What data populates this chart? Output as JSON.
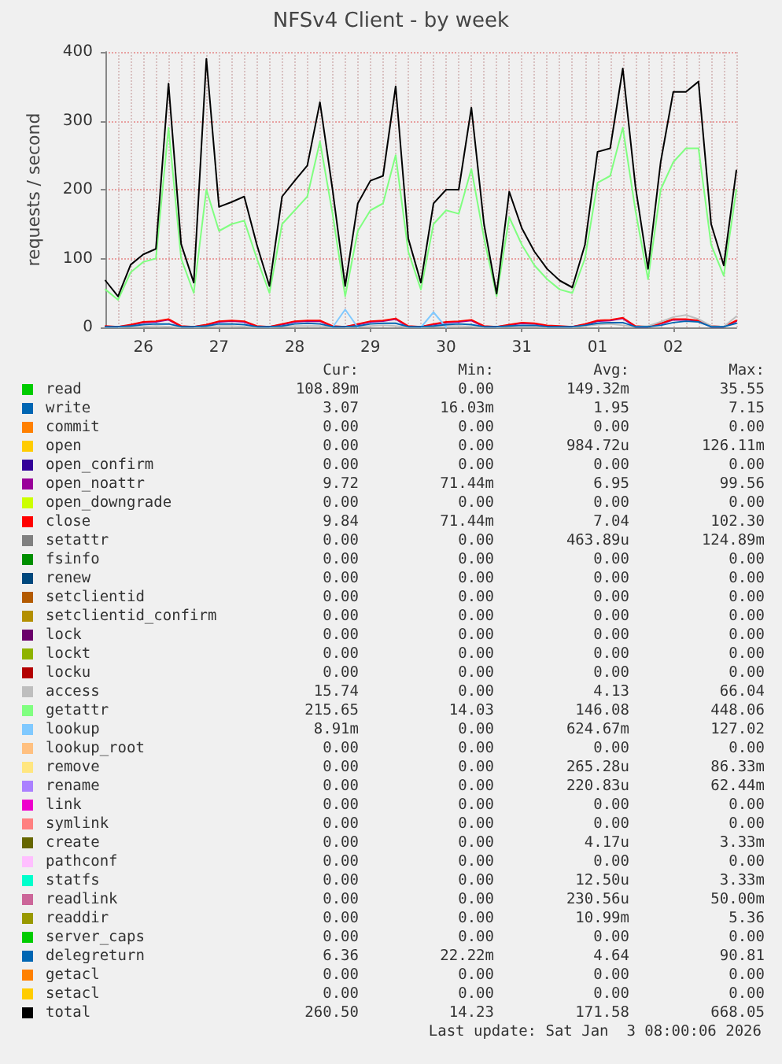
{
  "chart_data": {
    "type": "line",
    "title": "NFSv4 Client - by week",
    "ylabel": "requests / second",
    "categories": [
      null,
      null,
      null,
      "26",
      null,
      null,
      null,
      null,
      null,
      "27",
      null,
      null,
      null,
      null,
      null,
      "28",
      null,
      null,
      null,
      null,
      null,
      "29",
      null,
      null,
      null,
      null,
      null,
      "30",
      null,
      null,
      null,
      null,
      null,
      "31",
      null,
      null,
      null,
      null,
      null,
      "01",
      null,
      null,
      null,
      null,
      null,
      "02",
      null,
      null,
      null,
      null,
      null
    ],
    "ylim": [
      0,
      400
    ],
    "yticks": [
      0,
      100,
      200,
      300,
      400
    ],
    "grid": true,
    "legend": "bottom",
    "marker": "none",
    "line_style": "solid",
    "series": [
      {
        "name": "read",
        "color": "#00cc00",
        "values": [
          null,
          null,
          null,
          null,
          null,
          null,
          null,
          null,
          null,
          null,
          null,
          null,
          null,
          null,
          null,
          null,
          null,
          null,
          null,
          null,
          null,
          null,
          null,
          null,
          null,
          null,
          null,
          null,
          null,
          null,
          null,
          null,
          null,
          null,
          null,
          null,
          null,
          null,
          null,
          null,
          null,
          null,
          null,
          null,
          null,
          null,
          null,
          null,
          null,
          null,
          null
        ]
      },
      {
        "name": "write",
        "color": "#0066b3",
        "values": [
          null,
          null,
          null,
          null,
          null,
          null,
          null,
          null,
          null,
          null,
          null,
          null,
          null,
          null,
          null,
          null,
          null,
          null,
          null,
          null,
          null,
          null,
          null,
          null,
          null,
          null,
          null,
          null,
          null,
          null,
          null,
          null,
          null,
          null,
          null,
          null,
          null,
          null,
          null,
          null,
          null,
          null,
          null,
          null,
          null,
          null,
          null,
          null,
          null,
          null,
          null
        ]
      },
      {
        "name": "commit",
        "color": "#ff8000",
        "values": [
          null,
          null,
          null,
          null,
          null,
          null,
          null,
          null,
          null,
          null,
          null,
          null,
          null,
          null,
          null,
          null,
          null,
          null,
          null,
          null,
          null,
          null,
          null,
          null,
          null,
          null,
          null,
          null,
          null,
          null,
          null,
          null,
          null,
          null,
          null,
          null,
          null,
          null,
          null,
          null,
          null,
          null,
          null,
          null,
          null,
          null,
          null,
          null,
          null,
          null,
          null
        ]
      },
      {
        "name": "open",
        "color": "#ffcc00",
        "values": [
          null,
          null,
          null,
          null,
          null,
          null,
          null,
          null,
          null,
          null,
          null,
          null,
          null,
          null,
          null,
          null,
          null,
          null,
          null,
          null,
          null,
          null,
          null,
          null,
          null,
          null,
          null,
          null,
          null,
          null,
          null,
          null,
          null,
          null,
          null,
          null,
          null,
          null,
          null,
          null,
          null,
          null,
          null,
          null,
          null,
          null,
          null,
          null,
          null,
          null,
          null
        ]
      },
      {
        "name": "open_confirm",
        "color": "#330099",
        "values": [
          null,
          null,
          null,
          null,
          null,
          null,
          null,
          null,
          null,
          null,
          null,
          null,
          null,
          null,
          null,
          null,
          null,
          null,
          null,
          null,
          null,
          null,
          null,
          null,
          null,
          null,
          null,
          null,
          null,
          null,
          null,
          null,
          null,
          null,
          null,
          null,
          null,
          null,
          null,
          null,
          null,
          null,
          null,
          null,
          null,
          null,
          null,
          null,
          null,
          null,
          null
        ]
      },
      {
        "name": "open_noattr",
        "color": "#990099",
        "values": [
          1,
          1,
          3,
          7,
          8,
          11,
          1,
          1,
          3,
          8,
          9,
          8,
          1,
          1,
          4,
          8,
          9,
          9,
          1,
          1,
          4,
          8,
          9,
          12,
          1,
          1,
          4,
          7,
          8,
          10,
          1,
          1,
          3,
          6,
          5,
          2,
          1,
          1,
          4,
          9,
          10,
          13,
          1,
          1,
          5,
          11,
          11,
          9,
          1,
          1,
          9
        ]
      },
      {
        "name": "open_downgrade",
        "color": "#ccff00",
        "values": [
          null,
          null,
          null,
          null,
          null,
          null,
          null,
          null,
          null,
          null,
          null,
          null,
          null,
          null,
          null,
          null,
          null,
          null,
          null,
          null,
          null,
          null,
          null,
          null,
          null,
          null,
          null,
          null,
          null,
          null,
          null,
          null,
          null,
          null,
          null,
          null,
          null,
          null,
          null,
          null,
          null,
          null,
          null,
          null,
          null,
          null,
          null,
          null,
          null,
          null,
          null
        ]
      },
      {
        "name": "close",
        "color": "#ff0000",
        "values": [
          2,
          1,
          4,
          8,
          9,
          12,
          2,
          1,
          4,
          9,
          10,
          9,
          2,
          1,
          5,
          9,
          10,
          10,
          2,
          1,
          5,
          9,
          10,
          13,
          2,
          1,
          5,
          8,
          9,
          11,
          2,
          1,
          4,
          7,
          6,
          3,
          2,
          1,
          5,
          10,
          11,
          14,
          2,
          1,
          6,
          12,
          12,
          10,
          2,
          1,
          10
        ]
      },
      {
        "name": "setattr",
        "color": "#808080",
        "values": [
          null,
          null,
          null,
          null,
          null,
          null,
          null,
          null,
          null,
          null,
          null,
          null,
          null,
          null,
          null,
          null,
          null,
          null,
          null,
          null,
          null,
          null,
          null,
          null,
          null,
          null,
          null,
          null,
          null,
          null,
          null,
          null,
          null,
          null,
          null,
          null,
          null,
          null,
          null,
          null,
          null,
          null,
          null,
          null,
          null,
          null,
          null,
          null,
          null,
          null,
          null
        ]
      },
      {
        "name": "fsinfo",
        "color": "#008f00",
        "values": [
          null,
          null,
          null,
          null,
          null,
          null,
          null,
          null,
          null,
          null,
          null,
          null,
          null,
          null,
          null,
          null,
          null,
          null,
          null,
          null,
          null,
          null,
          null,
          null,
          null,
          null,
          null,
          null,
          null,
          null,
          null,
          null,
          null,
          null,
          null,
          null,
          null,
          null,
          null,
          null,
          null,
          null,
          null,
          null,
          null,
          null,
          null,
          null,
          null,
          null,
          null
        ]
      },
      {
        "name": "renew",
        "color": "#00487d",
        "values": [
          null,
          null,
          null,
          null,
          null,
          null,
          null,
          null,
          null,
          null,
          null,
          null,
          null,
          null,
          null,
          null,
          null,
          null,
          null,
          null,
          null,
          null,
          null,
          null,
          null,
          null,
          null,
          null,
          null,
          null,
          null,
          null,
          null,
          null,
          null,
          null,
          null,
          null,
          null,
          null,
          null,
          null,
          null,
          null,
          null,
          null,
          null,
          null,
          null,
          null,
          null
        ]
      },
      {
        "name": "setclientid",
        "color": "#b35a00",
        "values": [
          null,
          null,
          null,
          null,
          null,
          null,
          null,
          null,
          null,
          null,
          null,
          null,
          null,
          null,
          null,
          null,
          null,
          null,
          null,
          null,
          null,
          null,
          null,
          null,
          null,
          null,
          null,
          null,
          null,
          null,
          null,
          null,
          null,
          null,
          null,
          null,
          null,
          null,
          null,
          null,
          null,
          null,
          null,
          null,
          null,
          null,
          null,
          null,
          null,
          null,
          null
        ]
      },
      {
        "name": "setclientid_confirm",
        "color": "#b38f00",
        "values": [
          null,
          null,
          null,
          null,
          null,
          null,
          null,
          null,
          null,
          null,
          null,
          null,
          null,
          null,
          null,
          null,
          null,
          null,
          null,
          null,
          null,
          null,
          null,
          null,
          null,
          null,
          null,
          null,
          null,
          null,
          null,
          null,
          null,
          null,
          null,
          null,
          null,
          null,
          null,
          null,
          null,
          null,
          null,
          null,
          null,
          null,
          null,
          null,
          null,
          null,
          null
        ]
      },
      {
        "name": "lock",
        "color": "#6b006b",
        "values": [
          null,
          null,
          null,
          null,
          null,
          null,
          null,
          null,
          null,
          null,
          null,
          null,
          null,
          null,
          null,
          null,
          null,
          null,
          null,
          null,
          null,
          null,
          null,
          null,
          null,
          null,
          null,
          null,
          null,
          null,
          null,
          null,
          null,
          null,
          null,
          null,
          null,
          null,
          null,
          null,
          null,
          null,
          null,
          null,
          null,
          null,
          null,
          null,
          null,
          null,
          null
        ]
      },
      {
        "name": "lockt",
        "color": "#8fb300",
        "values": [
          null,
          null,
          null,
          null,
          null,
          null,
          null,
          null,
          null,
          null,
          null,
          null,
          null,
          null,
          null,
          null,
          null,
          null,
          null,
          null,
          null,
          null,
          null,
          null,
          null,
          null,
          null,
          null,
          null,
          null,
          null,
          null,
          null,
          null,
          null,
          null,
          null,
          null,
          null,
          null,
          null,
          null,
          null,
          null,
          null,
          null,
          null,
          null,
          null,
          null,
          null
        ]
      },
      {
        "name": "locku",
        "color": "#b30000",
        "values": [
          null,
          null,
          null,
          null,
          null,
          null,
          null,
          null,
          null,
          null,
          null,
          null,
          null,
          null,
          null,
          null,
          null,
          null,
          null,
          null,
          null,
          null,
          null,
          null,
          null,
          null,
          null,
          null,
          null,
          null,
          null,
          null,
          null,
          null,
          null,
          null,
          null,
          null,
          null,
          null,
          null,
          null,
          null,
          null,
          null,
          null,
          null,
          null,
          null,
          null,
          null
        ]
      },
      {
        "name": "access",
        "color": "#bebebe",
        "values": [
          0,
          0,
          1,
          1,
          2,
          1,
          0,
          0,
          1,
          2,
          2,
          1,
          0,
          0,
          1,
          2,
          2,
          2,
          0,
          0,
          1,
          2,
          3,
          2,
          0,
          0,
          1,
          2,
          2,
          1,
          0,
          0,
          1,
          1,
          1,
          0,
          0,
          0,
          2,
          4,
          5,
          3,
          1,
          2,
          8,
          15,
          18,
          12,
          2,
          1,
          16
        ]
      },
      {
        "name": "getattr",
        "color": "#80ff80",
        "values": [
          55,
          40,
          80,
          95,
          100,
          290,
          100,
          50,
          200,
          140,
          150,
          155,
          100,
          50,
          150,
          170,
          190,
          270,
          165,
          45,
          140,
          170,
          180,
          250,
          110,
          55,
          150,
          170,
          165,
          230,
          130,
          45,
          160,
          120,
          90,
          70,
          55,
          50,
          100,
          210,
          220,
          290,
          170,
          70,
          200,
          240,
          260,
          260,
          120,
          75,
          200
        ]
      },
      {
        "name": "lookup",
        "color": "#80c9ff",
        "values": [
          null,
          null,
          null,
          null,
          null,
          null,
          null,
          null,
          null,
          null,
          null,
          null,
          null,
          null,
          null,
          null,
          null,
          null,
          0,
          26,
          0,
          null,
          null,
          null,
          null,
          0,
          22,
          0,
          null,
          null,
          null,
          null,
          null,
          null,
          null,
          null,
          null,
          null,
          null,
          null,
          null,
          null,
          null,
          null,
          null,
          null,
          null,
          null,
          null,
          null,
          null
        ]
      },
      {
        "name": "lookup_root",
        "color": "#ffc080",
        "values": [
          null,
          null,
          null,
          null,
          null,
          null,
          null,
          null,
          null,
          null,
          null,
          null,
          null,
          null,
          null,
          null,
          null,
          null,
          null,
          null,
          null,
          null,
          null,
          null,
          null,
          null,
          null,
          null,
          null,
          null,
          null,
          null,
          null,
          null,
          null,
          null,
          null,
          null,
          null,
          null,
          null,
          null,
          null,
          null,
          null,
          null,
          null,
          null,
          null,
          null,
          null
        ]
      },
      {
        "name": "remove",
        "color": "#ffe680",
        "values": [
          null,
          null,
          null,
          null,
          null,
          null,
          null,
          null,
          null,
          null,
          null,
          null,
          null,
          null,
          null,
          null,
          null,
          null,
          null,
          null,
          null,
          null,
          null,
          null,
          null,
          null,
          null,
          null,
          null,
          null,
          null,
          null,
          null,
          null,
          null,
          null,
          null,
          null,
          null,
          null,
          null,
          null,
          null,
          null,
          null,
          null,
          null,
          null,
          null,
          null,
          null
        ]
      },
      {
        "name": "rename",
        "color": "#aa80ff",
        "values": [
          null,
          null,
          null,
          null,
          null,
          null,
          null,
          null,
          null,
          null,
          null,
          null,
          null,
          null,
          null,
          null,
          null,
          null,
          null,
          null,
          null,
          null,
          null,
          null,
          null,
          null,
          null,
          null,
          null,
          null,
          null,
          null,
          null,
          null,
          null,
          null,
          null,
          null,
          null,
          null,
          null,
          null,
          null,
          null,
          null,
          null,
          null,
          null,
          null,
          null,
          null
        ]
      },
      {
        "name": "link",
        "color": "#ee00cc",
        "values": [
          null,
          null,
          null,
          null,
          null,
          null,
          null,
          null,
          null,
          null,
          null,
          null,
          null,
          null,
          null,
          null,
          null,
          null,
          null,
          null,
          null,
          null,
          null,
          null,
          null,
          null,
          null,
          null,
          null,
          null,
          null,
          null,
          null,
          null,
          null,
          null,
          null,
          null,
          null,
          null,
          null,
          null,
          null,
          null,
          null,
          null,
          null,
          null,
          null,
          null,
          null
        ]
      },
      {
        "name": "symlink",
        "color": "#ff8080",
        "values": [
          null,
          null,
          null,
          null,
          null,
          null,
          null,
          null,
          null,
          null,
          null,
          null,
          null,
          null,
          null,
          null,
          null,
          null,
          null,
          null,
          null,
          null,
          null,
          null,
          null,
          null,
          null,
          null,
          null,
          null,
          null,
          null,
          null,
          null,
          null,
          null,
          null,
          null,
          null,
          null,
          null,
          null,
          null,
          null,
          null,
          null,
          null,
          null,
          null,
          null,
          null
        ]
      },
      {
        "name": "create",
        "color": "#666600",
        "values": [
          null,
          null,
          null,
          null,
          null,
          null,
          null,
          null,
          null,
          null,
          null,
          null,
          null,
          null,
          null,
          null,
          null,
          null,
          null,
          null,
          null,
          null,
          null,
          null,
          null,
          null,
          null,
          null,
          null,
          null,
          null,
          null,
          null,
          null,
          null,
          null,
          null,
          null,
          null,
          null,
          null,
          null,
          null,
          null,
          null,
          null,
          null,
          null,
          null,
          null,
          null
        ]
      },
      {
        "name": "pathconf",
        "color": "#ffbfff",
        "values": [
          null,
          null,
          null,
          null,
          null,
          null,
          null,
          null,
          null,
          null,
          null,
          null,
          null,
          null,
          null,
          null,
          null,
          null,
          null,
          null,
          null,
          null,
          null,
          null,
          null,
          null,
          null,
          null,
          null,
          null,
          null,
          null,
          null,
          null,
          null,
          null,
          null,
          null,
          null,
          null,
          null,
          null,
          null,
          null,
          null,
          null,
          null,
          null,
          null,
          null,
          null
        ]
      },
      {
        "name": "statfs",
        "color": "#00ffcc",
        "values": [
          null,
          null,
          null,
          null,
          null,
          null,
          null,
          null,
          null,
          null,
          null,
          null,
          null,
          null,
          null,
          null,
          null,
          null,
          null,
          null,
          null,
          null,
          null,
          null,
          null,
          null,
          null,
          null,
          null,
          null,
          null,
          null,
          null,
          null,
          null,
          null,
          null,
          null,
          null,
          null,
          null,
          null,
          null,
          null,
          null,
          null,
          null,
          null,
          null,
          null,
          null
        ]
      },
      {
        "name": "readlink",
        "color": "#cc6699",
        "values": [
          null,
          null,
          null,
          null,
          null,
          null,
          null,
          null,
          null,
          null,
          null,
          null,
          null,
          null,
          null,
          null,
          null,
          null,
          null,
          null,
          null,
          null,
          null,
          null,
          null,
          null,
          null,
          null,
          null,
          null,
          null,
          null,
          null,
          null,
          null,
          null,
          null,
          null,
          null,
          null,
          null,
          null,
          null,
          null,
          null,
          null,
          null,
          null,
          null,
          null,
          null
        ]
      },
      {
        "name": "readdir",
        "color": "#999900",
        "values": [
          null,
          null,
          null,
          null,
          null,
          null,
          null,
          null,
          null,
          null,
          null,
          null,
          null,
          null,
          null,
          null,
          null,
          null,
          null,
          null,
          null,
          null,
          null,
          null,
          null,
          null,
          null,
          null,
          null,
          null,
          null,
          null,
          null,
          null,
          null,
          null,
          null,
          null,
          null,
          null,
          null,
          null,
          null,
          null,
          null,
          null,
          null,
          null,
          null,
          null,
          null
        ]
      },
      {
        "name": "server_caps",
        "color": "#00cc00",
        "values": [
          null,
          null,
          null,
          null,
          null,
          null,
          null,
          null,
          null,
          null,
          null,
          null,
          null,
          null,
          null,
          null,
          null,
          null,
          null,
          null,
          null,
          null,
          null,
          null,
          null,
          null,
          null,
          null,
          null,
          null,
          null,
          null,
          null,
          null,
          null,
          null,
          null,
          null,
          null,
          null,
          null,
          null,
          null,
          null,
          null,
          null,
          null,
          null,
          null,
          null,
          null
        ]
      },
      {
        "name": "delegreturn",
        "color": "#0066b3",
        "values": [
          1,
          1,
          2,
          4,
          5,
          5,
          1,
          1,
          2,
          5,
          5,
          4,
          1,
          1,
          2,
          5,
          6,
          5,
          1,
          1,
          2,
          5,
          6,
          6,
          1,
          1,
          2,
          4,
          5,
          4,
          1,
          1,
          2,
          3,
          3,
          1,
          1,
          1,
          3,
          6,
          7,
          7,
          1,
          1,
          3,
          7,
          9,
          8,
          1,
          1,
          6
        ]
      },
      {
        "name": "getacl",
        "color": "#ff8000",
        "values": [
          null,
          null,
          null,
          null,
          null,
          null,
          null,
          null,
          null,
          null,
          null,
          null,
          null,
          null,
          null,
          null,
          null,
          null,
          null,
          null,
          null,
          null,
          null,
          null,
          null,
          null,
          null,
          null,
          null,
          null,
          null,
          null,
          null,
          null,
          null,
          null,
          null,
          null,
          null,
          null,
          null,
          null,
          null,
          null,
          null,
          null,
          null,
          null,
          null,
          null,
          null
        ]
      },
      {
        "name": "setacl",
        "color": "#ffcc00",
        "values": [
          null,
          null,
          null,
          null,
          null,
          null,
          null,
          null,
          null,
          null,
          null,
          null,
          null,
          null,
          null,
          null,
          null,
          null,
          null,
          null,
          null,
          null,
          null,
          null,
          null,
          null,
          null,
          null,
          null,
          null,
          null,
          null,
          null,
          null,
          null,
          null,
          null,
          null,
          null,
          null,
          null,
          null,
          null,
          null,
          null,
          null,
          null,
          null,
          null,
          null,
          null
        ]
      },
      {
        "name": "total",
        "color": "#000000",
        "values": [
          68,
          45,
          91,
          106,
          114,
          354,
          121,
          65,
          390,
          175,
          182,
          190,
          120,
          60,
          190,
          213,
          235,
          327,
          200,
          60,
          180,
          213,
          220,
          350,
          129,
          65,
          180,
          200,
          200,
          319,
          150,
          49,
          197,
          144,
          110,
          85,
          68,
          58,
          120,
          255,
          260,
          376,
          205,
          85,
          240,
          342,
          342,
          357,
          150,
          90,
          228
        ]
      }
    ],
    "annotations": [
      "Cur:",
      "Min:",
      "Avg:",
      "Max:",
      "108.89m",
      "0.00",
      "149.32m",
      "35.55",
      "3.07",
      "16.03m",
      "1.95",
      "7.15",
      "0.00",
      "0.00",
      "0.00",
      "0.00",
      "0.00",
      "0.00",
      "984.72u",
      "126.11m",
      "0.00",
      "0.00",
      "0.00",
      "0.00",
      "9.72",
      "71.44m",
      "6.95",
      "99.56",
      "0.00",
      "0.00",
      "0.00",
      "0.00",
      "9.84",
      "71.44m",
      "7.04",
      "102.30",
      "0.00",
      "0.00",
      "463.89u",
      "124.89m",
      "0.00",
      "0.00",
      "0.00",
      "0.00",
      "0.00",
      "0.00",
      "0.00",
      "0.00",
      "0.00",
      "0.00",
      "0.00",
      "0.00",
      "0.00",
      "0.00",
      "0.00",
      "0.00",
      "0.00",
      "0.00",
      "0.00",
      "0.00",
      "0.00",
      "0.00",
      "0.00",
      "0.00",
      "0.00",
      "0.00",
      "0.00",
      "0.00",
      "15.74",
      "0.00",
      "4.13",
      "66.04",
      "215.65",
      "14.03",
      "146.08",
      "448.06",
      "8.91m",
      "0.00",
      "624.67m",
      "127.02",
      "0.00",
      "0.00",
      "0.00",
      "0.00",
      "0.00",
      "0.00",
      "265.28u",
      "86.33m",
      "0.00",
      "0.00",
      "220.83u",
      "62.44m",
      "0.00",
      "0.00",
      "0.00",
      "0.00",
      "0.00",
      "0.00",
      "0.00",
      "0.00",
      "0.00",
      "0.00",
      "4.17u",
      "3.33m",
      "0.00",
      "0.00",
      "0.00",
      "0.00",
      "0.00",
      "0.00",
      "12.50u",
      "3.33m",
      "0.00",
      "0.00",
      "230.56u",
      "50.00m",
      "0.00",
      "0.00",
      "10.99m",
      "5.36",
      "0.00",
      "0.00",
      "0.00",
      "0.00",
      "6.36",
      "22.22m",
      "4.64",
      "90.81",
      "0.00",
      "0.00",
      "0.00",
      "0.00",
      "0.00",
      "0.00",
      "0.00",
      "0.00",
      "260.50",
      "14.23",
      "171.58",
      "668.05",
      "Last update: Sat Jan  3 08:00:06 2026"
    ]
  }
}
